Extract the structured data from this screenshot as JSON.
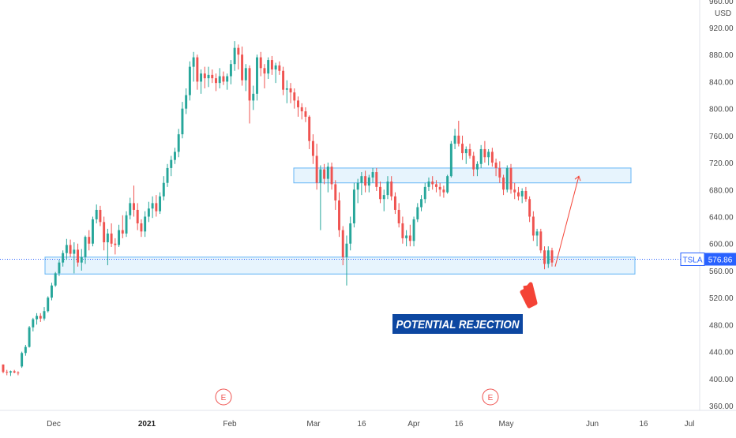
{
  "chart_data": {
    "type": "candlestick",
    "ticker": "TSLA",
    "current_price": "576.86",
    "currency": "USD",
    "ylim": [
      360,
      960
    ],
    "y_ticks": [
      "360.00",
      "400.00",
      "440.00",
      "480.00",
      "520.00",
      "560.00",
      "600.00",
      "640.00",
      "680.00",
      "720.00",
      "760.00",
      "800.00",
      "840.00",
      "880.00",
      "920.00",
      "960.00"
    ],
    "x_ticks": [
      {
        "label": "Dec",
        "bold": false
      },
      {
        "label": "2021",
        "bold": true
      },
      {
        "label": "Feb",
        "bold": false
      },
      {
        "label": "Mar",
        "bold": false
      },
      {
        "label": "16",
        "bold": false
      },
      {
        "label": "Apr",
        "bold": false
      },
      {
        "label": "16",
        "bold": false
      },
      {
        "label": "May",
        "bold": false
      },
      {
        "label": "Jun",
        "bold": false
      },
      {
        "label": "16",
        "bold": false
      },
      {
        "label": "Jul",
        "bold": false
      }
    ],
    "earnings_markers": [
      "E",
      "E"
    ],
    "annotation": "POTENTIAL REJECTION",
    "support_zone": [
      555,
      580
    ],
    "resistance_zone": [
      690,
      712
    ],
    "projection": {
      "from": 566,
      "to": 700
    },
    "colors": {
      "up": "#26a69a",
      "down": "#ef5350",
      "zone_fill": "#e3f2fd",
      "zone_border": "#64b5f6",
      "annotation_bg": "#0d47a1",
      "annotation_text": "#ffffff",
      "arrow": "#f44336",
      "label_bg": "#2962ff"
    },
    "candles": [
      [
        421,
        421,
        408,
        410
      ],
      [
        410,
        413,
        405,
        409
      ],
      [
        409,
        412,
        404,
        411
      ],
      [
        411,
        413,
        408,
        409
      ],
      [
        409,
        411,
        405,
        408
      ],
      [
        418,
        440,
        416,
        438
      ],
      [
        438,
        450,
        434,
        447
      ],
      [
        447,
        478,
        446,
        476
      ],
      [
        476,
        490,
        470,
        488
      ],
      [
        488,
        497,
        480,
        493
      ],
      [
        493,
        497,
        484,
        489
      ],
      [
        489,
        506,
        486,
        500
      ],
      [
        500,
        522,
        498,
        520
      ],
      [
        520,
        542,
        516,
        538
      ],
      [
        538,
        558,
        536,
        556
      ],
      [
        556,
        576,
        552,
        572
      ],
      [
        572,
        590,
        566,
        586
      ],
      [
        586,
        607,
        576,
        598
      ],
      [
        598,
        606,
        580,
        585
      ],
      [
        585,
        602,
        556,
        591
      ],
      [
        591,
        600,
        566,
        572
      ],
      [
        572,
        592,
        560,
        580
      ],
      [
        580,
        612,
        570,
        610
      ],
      [
        610,
        620,
        590,
        600
      ],
      [
        600,
        640,
        596,
        636
      ],
      [
        636,
        658,
        630,
        650
      ],
      [
        650,
        656,
        626,
        632
      ],
      [
        632,
        640,
        590,
        602
      ],
      [
        602,
        622,
        568,
        615
      ],
      [
        615,
        630,
        595,
        600
      ],
      [
        600,
        608,
        584,
        598
      ],
      [
        598,
        628,
        595,
        620
      ],
      [
        620,
        642,
        608,
        615
      ],
      [
        615,
        648,
        610,
        642
      ],
      [
        642,
        668,
        636,
        660
      ],
      [
        660,
        686,
        640,
        650
      ],
      [
        650,
        660,
        620,
        630
      ],
      [
        630,
        636,
        610,
        618
      ],
      [
        618,
        648,
        610,
        640
      ],
      [
        640,
        662,
        632,
        652
      ],
      [
        652,
        670,
        638,
        660
      ],
      [
        660,
        672,
        640,
        648
      ],
      [
        648,
        676,
        644,
        670
      ],
      [
        670,
        700,
        664,
        690
      ],
      [
        690,
        718,
        684,
        712
      ],
      [
        712,
        730,
        700,
        724
      ],
      [
        724,
        742,
        718,
        736
      ],
      [
        736,
        770,
        728,
        762
      ],
      [
        762,
        810,
        756,
        800
      ],
      [
        800,
        830,
        792,
        820
      ],
      [
        820,
        870,
        812,
        862
      ],
      [
        862,
        884,
        840,
        876
      ],
      [
        876,
        880,
        828,
        840
      ],
      [
        840,
        858,
        822,
        852
      ],
      [
        852,
        862,
        830,
        845
      ],
      [
        845,
        862,
        832,
        850
      ],
      [
        850,
        858,
        838,
        845
      ],
      [
        845,
        852,
        826,
        838
      ],
      [
        838,
        860,
        830,
        848
      ],
      [
        848,
        855,
        835,
        840
      ],
      [
        840,
        852,
        828,
        848
      ],
      [
        848,
        872,
        836,
        866
      ],
      [
        866,
        900,
        856,
        890
      ],
      [
        890,
        895,
        858,
        880
      ],
      [
        880,
        892,
        834,
        842
      ],
      [
        842,
        866,
        826,
        860
      ],
      [
        860,
        864,
        778,
        812
      ],
      [
        812,
        834,
        798,
        822
      ],
      [
        822,
        880,
        812,
        876
      ],
      [
        876,
        884,
        848,
        860
      ],
      [
        860,
        866,
        830,
        852
      ],
      [
        852,
        876,
        844,
        872
      ],
      [
        872,
        878,
        850,
        858
      ],
      [
        858,
        868,
        838,
        864
      ],
      [
        864,
        870,
        850,
        856
      ],
      [
        856,
        862,
        820,
        828
      ],
      [
        828,
        842,
        808,
        830
      ],
      [
        830,
        838,
        808,
        824
      ],
      [
        824,
        830,
        800,
        812
      ],
      [
        812,
        818,
        788,
        802
      ],
      [
        802,
        808,
        784,
        796
      ],
      [
        796,
        802,
        780,
        788
      ],
      [
        788,
        790,
        740,
        752
      ],
      [
        752,
        762,
        718,
        730
      ],
      [
        730,
        748,
        680,
        690
      ],
      [
        690,
        716,
        620,
        710
      ],
      [
        710,
        718,
        688,
        696
      ],
      [
        696,
        720,
        676,
        714
      ],
      [
        714,
        720,
        680,
        688
      ],
      [
        688,
        694,
        650,
        664
      ],
      [
        664,
        676,
        610,
        620
      ],
      [
        620,
        626,
        568,
        580
      ],
      [
        580,
        612,
        538,
        600
      ],
      [
        600,
        640,
        590,
        630
      ],
      [
        630,
        690,
        624,
        680
      ],
      [
        680,
        696,
        660,
        690
      ],
      [
        690,
        706,
        672,
        700
      ],
      [
        700,
        708,
        676,
        686
      ],
      [
        686,
        702,
        676,
        698
      ],
      [
        698,
        712,
        690,
        706
      ],
      [
        706,
        712,
        678,
        684
      ],
      [
        684,
        692,
        660,
        666
      ],
      [
        666,
        680,
        648,
        672
      ],
      [
        672,
        700,
        666,
        692
      ],
      [
        692,
        700,
        664,
        670
      ],
      [
        670,
        676,
        644,
        650
      ],
      [
        650,
        660,
        624,
        630
      ],
      [
        630,
        640,
        600,
        608
      ],
      [
        608,
        620,
        596,
        612
      ],
      [
        612,
        628,
        596,
        604
      ],
      [
        604,
        640,
        596,
        636
      ],
      [
        636,
        660,
        632,
        654
      ],
      [
        654,
        672,
        648,
        666
      ],
      [
        666,
        690,
        660,
        684
      ],
      [
        684,
        698,
        678,
        692
      ],
      [
        692,
        700,
        680,
        688
      ],
      [
        688,
        694,
        676,
        684
      ],
      [
        684,
        690,
        670,
        680
      ],
      [
        680,
        686,
        668,
        676
      ],
      [
        676,
        702,
        674,
        700
      ],
      [
        700,
        752,
        698,
        748
      ],
      [
        748,
        770,
        740,
        760
      ],
      [
        760,
        782,
        744,
        748
      ],
      [
        748,
        760,
        724,
        734
      ],
      [
        734,
        744,
        718,
        740
      ],
      [
        740,
        748,
        726,
        730
      ],
      [
        730,
        736,
        700,
        710
      ],
      [
        710,
        722,
        700,
        718
      ],
      [
        718,
        746,
        712,
        740
      ],
      [
        740,
        752,
        720,
        728
      ],
      [
        728,
        740,
        716,
        736
      ],
      [
        736,
        742,
        714,
        720
      ],
      [
        720,
        726,
        700,
        712
      ],
      [
        712,
        722,
        690,
        698
      ],
      [
        698,
        702,
        672,
        680
      ],
      [
        680,
        716,
        676,
        712
      ],
      [
        712,
        718,
        674,
        680
      ],
      [
        680,
        690,
        666,
        676
      ],
      [
        676,
        684,
        664,
        670
      ],
      [
        670,
        682,
        660,
        678
      ],
      [
        678,
        684,
        662,
        666
      ],
      [
        666,
        670,
        632,
        640
      ],
      [
        640,
        648,
        604,
        612
      ],
      [
        612,
        622,
        596,
        618
      ],
      [
        618,
        622,
        586,
        590
      ],
      [
        590,
        596,
        562,
        570
      ],
      [
        570,
        596,
        564,
        590
      ],
      [
        590,
        594,
        566,
        572
      ]
    ]
  }
}
